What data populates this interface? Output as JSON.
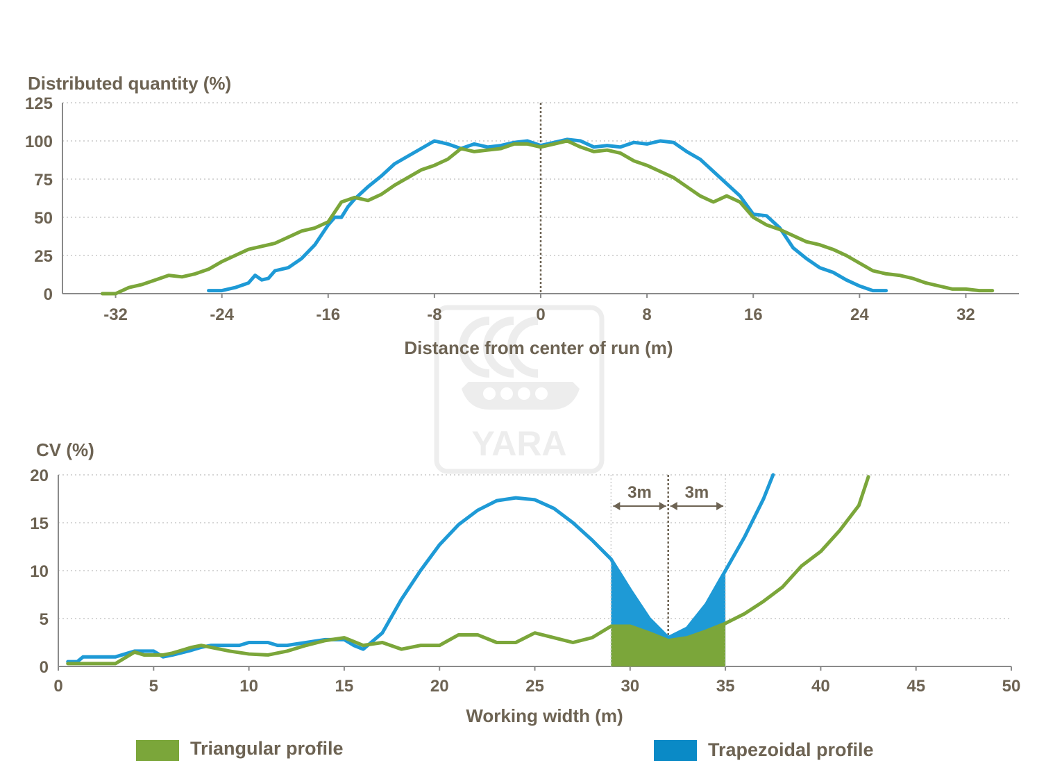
{
  "colors": {
    "triangular": "#7ba63a",
    "trapezoidal": "#1e9ad6",
    "text": "#6d6353"
  },
  "watermark": {
    "logo_text": "YARA"
  },
  "legend": [
    {
      "label": "Triangular profile",
      "color": "#7ba63a"
    },
    {
      "label": "Trapezoidal profile",
      "color": "#0a8ac6"
    }
  ],
  "chart_data": [
    {
      "type": "line",
      "title": "",
      "ylabel": "Distributed quantity (%)",
      "xlabel": "Distance from center of run (m)",
      "xlim": [
        -36,
        36
      ],
      "ylim": [
        0,
        125
      ],
      "xticks": [
        -32,
        -24,
        -16,
        -8,
        0,
        8,
        16,
        24,
        32
      ],
      "yticks": [
        0,
        25,
        50,
        75,
        100,
        125
      ],
      "center_line_x": 0,
      "series": [
        {
          "name": "Trapezoidal profile",
          "color": "#1e9ad6",
          "points": [
            [
              -25,
              2
            ],
            [
              -24,
              2
            ],
            [
              -23,
              4
            ],
            [
              -22,
              7
            ],
            [
              -21.5,
              12
            ],
            [
              -21,
              9
            ],
            [
              -20.5,
              10
            ],
            [
              -20,
              15
            ],
            [
              -19,
              17
            ],
            [
              -18,
              23
            ],
            [
              -17,
              32
            ],
            [
              -16,
              45
            ],
            [
              -15.5,
              50
            ],
            [
              -15,
              50
            ],
            [
              -14.5,
              57
            ],
            [
              -14,
              62
            ],
            [
              -13,
              70
            ],
            [
              -12,
              77
            ],
            [
              -11,
              85
            ],
            [
              -10,
              90
            ],
            [
              -9,
              95
            ],
            [
              -8,
              100
            ],
            [
              -7,
              98
            ],
            [
              -6,
              95
            ],
            [
              -5,
              98
            ],
            [
              -4,
              96
            ],
            [
              -3,
              97
            ],
            [
              -2,
              99
            ],
            [
              -1,
              100
            ],
            [
              0,
              97
            ],
            [
              1,
              99
            ],
            [
              2,
              101
            ],
            [
              3,
              100
            ],
            [
              4,
              96
            ],
            [
              5,
              97
            ],
            [
              6,
              96
            ],
            [
              7,
              99
            ],
            [
              8,
              98
            ],
            [
              9,
              100
            ],
            [
              10,
              99
            ],
            [
              11,
              93
            ],
            [
              12,
              88
            ],
            [
              13,
              80
            ],
            [
              14,
              72
            ],
            [
              15,
              64
            ],
            [
              16,
              52
            ],
            [
              17,
              51
            ],
            [
              18,
              43
            ],
            [
              19,
              30
            ],
            [
              20,
              23
            ],
            [
              21,
              17
            ],
            [
              22,
              14
            ],
            [
              23,
              9
            ],
            [
              24,
              5
            ],
            [
              25,
              2
            ],
            [
              26,
              2
            ]
          ]
        },
        {
          "name": "Triangular profile",
          "color": "#7ba63a",
          "points": [
            [
              -33,
              0
            ],
            [
              -32,
              0
            ],
            [
              -31,
              4
            ],
            [
              -30,
              6
            ],
            [
              -29,
              9
            ],
            [
              -28,
              12
            ],
            [
              -27,
              11
            ],
            [
              -26,
              13
            ],
            [
              -25,
              16
            ],
            [
              -24,
              21
            ],
            [
              -23,
              25
            ],
            [
              -22,
              29
            ],
            [
              -21,
              31
            ],
            [
              -20,
              33
            ],
            [
              -19,
              37
            ],
            [
              -18,
              41
            ],
            [
              -17,
              43
            ],
            [
              -16,
              47
            ],
            [
              -15,
              60
            ],
            [
              -14,
              63
            ],
            [
              -13,
              61
            ],
            [
              -12,
              65
            ],
            [
              -11,
              71
            ],
            [
              -10,
              76
            ],
            [
              -9,
              81
            ],
            [
              -8,
              84
            ],
            [
              -7,
              88
            ],
            [
              -6,
              95
            ],
            [
              -5,
              93
            ],
            [
              -4,
              94
            ],
            [
              -3,
              95
            ],
            [
              -2,
              98
            ],
            [
              -1,
              98
            ],
            [
              0,
              96
            ],
            [
              1,
              98
            ],
            [
              2,
              100
            ],
            [
              3,
              96
            ],
            [
              4,
              93
            ],
            [
              5,
              94
            ],
            [
              6,
              92
            ],
            [
              7,
              87
            ],
            [
              8,
              84
            ],
            [
              9,
              80
            ],
            [
              10,
              76
            ],
            [
              11,
              70
            ],
            [
              12,
              64
            ],
            [
              13,
              60
            ],
            [
              14,
              64
            ],
            [
              15,
              60
            ],
            [
              16,
              50
            ],
            [
              17,
              45
            ],
            [
              18,
              42
            ],
            [
              19,
              38
            ],
            [
              20,
              34
            ],
            [
              21,
              32
            ],
            [
              22,
              29
            ],
            [
              23,
              25
            ],
            [
              24,
              20
            ],
            [
              25,
              15
            ],
            [
              26,
              13
            ],
            [
              27,
              12
            ],
            [
              28,
              10
            ],
            [
              29,
              7
            ],
            [
              30,
              5
            ],
            [
              31,
              3
            ],
            [
              32,
              3
            ],
            [
              33,
              2
            ],
            [
              34,
              2
            ]
          ]
        }
      ]
    },
    {
      "type": "line",
      "title": "",
      "ylabel": "CV (%)",
      "xlabel": "Working width (m)",
      "xlim": [
        0,
        50
      ],
      "ylim": [
        0,
        20
      ],
      "xticks": [
        0,
        5,
        10,
        15,
        20,
        25,
        30,
        35,
        40,
        45,
        50
      ],
      "yticks": [
        0,
        5,
        10,
        15,
        20
      ],
      "annotations": [
        {
          "text": "3m",
          "from": 29,
          "to": 32
        },
        {
          "text": "3m",
          "from": 32,
          "to": 35
        }
      ],
      "shaded_range": [
        29,
        35
      ],
      "center_line_x": 32,
      "series": [
        {
          "name": "Trapezoidal profile",
          "color": "#1e9ad6",
          "points": [
            [
              0.5,
              0.5
            ],
            [
              1,
              0.5
            ],
            [
              1.3,
              1
            ],
            [
              3,
              1
            ],
            [
              3.5,
              1.3
            ],
            [
              4,
              1.6
            ],
            [
              5,
              1.6
            ],
            [
              5.5,
              1
            ],
            [
              6,
              1.2
            ],
            [
              7,
              1.7
            ],
            [
              7.5,
              2
            ],
            [
              8,
              2.2
            ],
            [
              9.5,
              2.2
            ],
            [
              10,
              2.5
            ],
            [
              11,
              2.5
            ],
            [
              11.5,
              2.2
            ],
            [
              12,
              2.2
            ],
            [
              13,
              2.5
            ],
            [
              14,
              2.8
            ],
            [
              15,
              2.8
            ],
            [
              15.5,
              2.2
            ],
            [
              16,
              1.8
            ],
            [
              17,
              3.5
            ],
            [
              18,
              7
            ],
            [
              19,
              10
            ],
            [
              20,
              12.7
            ],
            [
              21,
              14.8
            ],
            [
              22,
              16.3
            ],
            [
              23,
              17.3
            ],
            [
              24,
              17.6
            ],
            [
              25,
              17.4
            ],
            [
              26,
              16.5
            ],
            [
              27,
              15
            ],
            [
              28,
              13.2
            ],
            [
              29,
              11.2
            ],
            [
              30,
              8
            ],
            [
              31,
              5
            ],
            [
              32,
              3
            ],
            [
              33,
              4
            ],
            [
              34,
              6.5
            ],
            [
              35,
              10
            ],
            [
              36,
              13.5
            ],
            [
              37,
              17.5
            ],
            [
              37.5,
              20
            ]
          ]
        },
        {
          "name": "Triangular profile",
          "color": "#7ba63a",
          "points": [
            [
              0.5,
              0.3
            ],
            [
              3,
              0.3
            ],
            [
              4,
              1.5
            ],
            [
              4.5,
              1.2
            ],
            [
              5.5,
              1.2
            ],
            [
              6,
              1.4
            ],
            [
              7,
              2
            ],
            [
              7.5,
              2.2
            ],
            [
              8,
              2
            ],
            [
              9,
              1.6
            ],
            [
              10,
              1.3
            ],
            [
              11,
              1.2
            ],
            [
              12,
              1.6
            ],
            [
              13,
              2.2
            ],
            [
              14,
              2.7
            ],
            [
              15,
              3
            ],
            [
              16,
              2.2
            ],
            [
              17,
              2.5
            ],
            [
              18,
              1.8
            ],
            [
              19,
              2.2
            ],
            [
              20,
              2.2
            ],
            [
              21,
              3.3
            ],
            [
              22,
              3.3
            ],
            [
              23,
              2.5
            ],
            [
              24,
              2.5
            ],
            [
              25,
              3.5
            ],
            [
              26,
              3
            ],
            [
              27,
              2.5
            ],
            [
              28,
              3
            ],
            [
              29,
              4.2
            ],
            [
              30,
              4.2
            ],
            [
              31,
              3.5
            ],
            [
              32,
              2.7
            ],
            [
              33,
              3
            ],
            [
              34,
              3.7
            ],
            [
              35,
              4.5
            ],
            [
              36,
              5.5
            ],
            [
              37,
              6.8
            ],
            [
              38,
              8.3
            ],
            [
              39,
              10.5
            ],
            [
              40,
              12
            ],
            [
              41,
              14.2
            ],
            [
              42,
              16.8
            ],
            [
              42.5,
              19.8
            ]
          ]
        }
      ]
    }
  ]
}
